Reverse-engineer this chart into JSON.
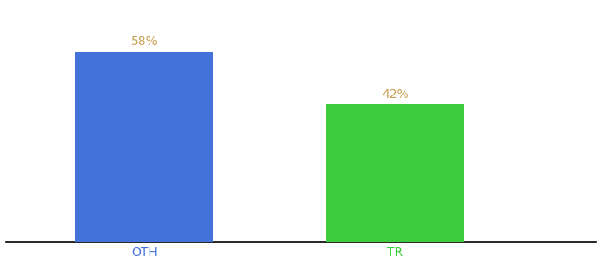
{
  "categories": [
    "OTH",
    "TR"
  ],
  "values": [
    58,
    42
  ],
  "bar_colors": [
    "#4472db",
    "#3dcc3d"
  ],
  "label_color": "#c8a050",
  "label_fontsize": 10,
  "tick_fontsize": 10,
  "tick_colors": [
    "#4472db",
    "#3dcc3d"
  ],
  "ylim": [
    0,
    72
  ],
  "background_color": "#ffffff",
  "bar_width": 0.55,
  "x_positions": [
    1,
    2
  ]
}
